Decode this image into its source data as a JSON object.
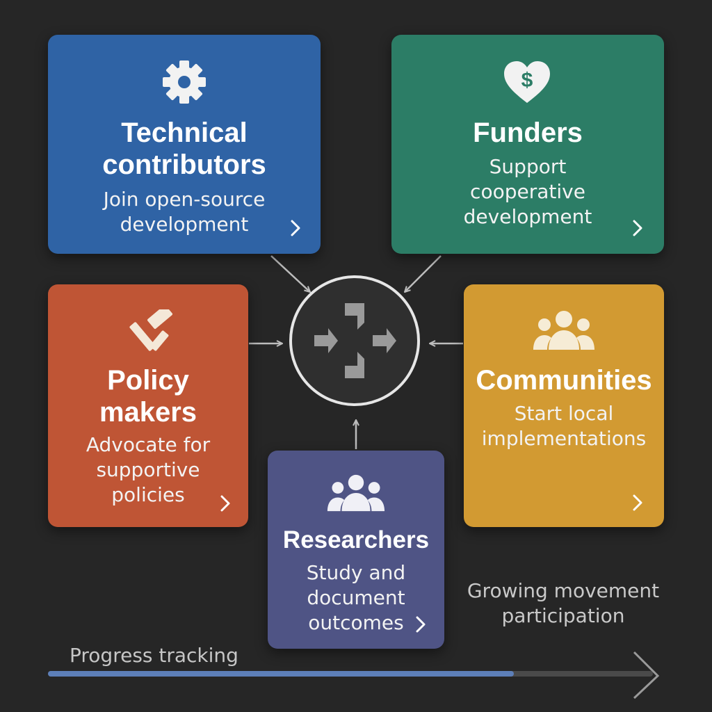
{
  "cards": {
    "technical": {
      "title_line1": "Technical",
      "title_line2": "contributors",
      "desc_line1": "Join open-source",
      "desc_line2": "development",
      "icon": "gear-icon",
      "color": "#2f63a5"
    },
    "funders": {
      "title": "Funders",
      "desc_line1": "Support",
      "desc_line2": "cooperative",
      "desc_line3": "development",
      "icon": "heart-dollar-icon",
      "color": "#2c7d66"
    },
    "policy": {
      "title_line1": "Policy",
      "title_line2": "makers",
      "desc_line1": "Advocate for",
      "desc_line2": "supportive",
      "desc_line3": "policies",
      "icon": "gavel-icon",
      "color": "#bf5535"
    },
    "communities": {
      "title": "Communities",
      "desc_line1": "Start local",
      "desc_line2": "implementations",
      "icon": "people-group-icon",
      "color": "#d29a32"
    },
    "researchers": {
      "title": "Researchers",
      "desc_line1": "Study and",
      "desc_line2": "document",
      "desc_line3": "outcomes",
      "icon": "people-group-icon",
      "color": "#4f5485"
    }
  },
  "hub": {
    "icon": "converging-arrows-icon"
  },
  "caption": {
    "line1": "Growing movement",
    "line2": "participation"
  },
  "progress": {
    "label": "Progress tracking",
    "value": 0.77,
    "fill_color": "#5d7fb8",
    "track_color": "#4a4a4a"
  }
}
